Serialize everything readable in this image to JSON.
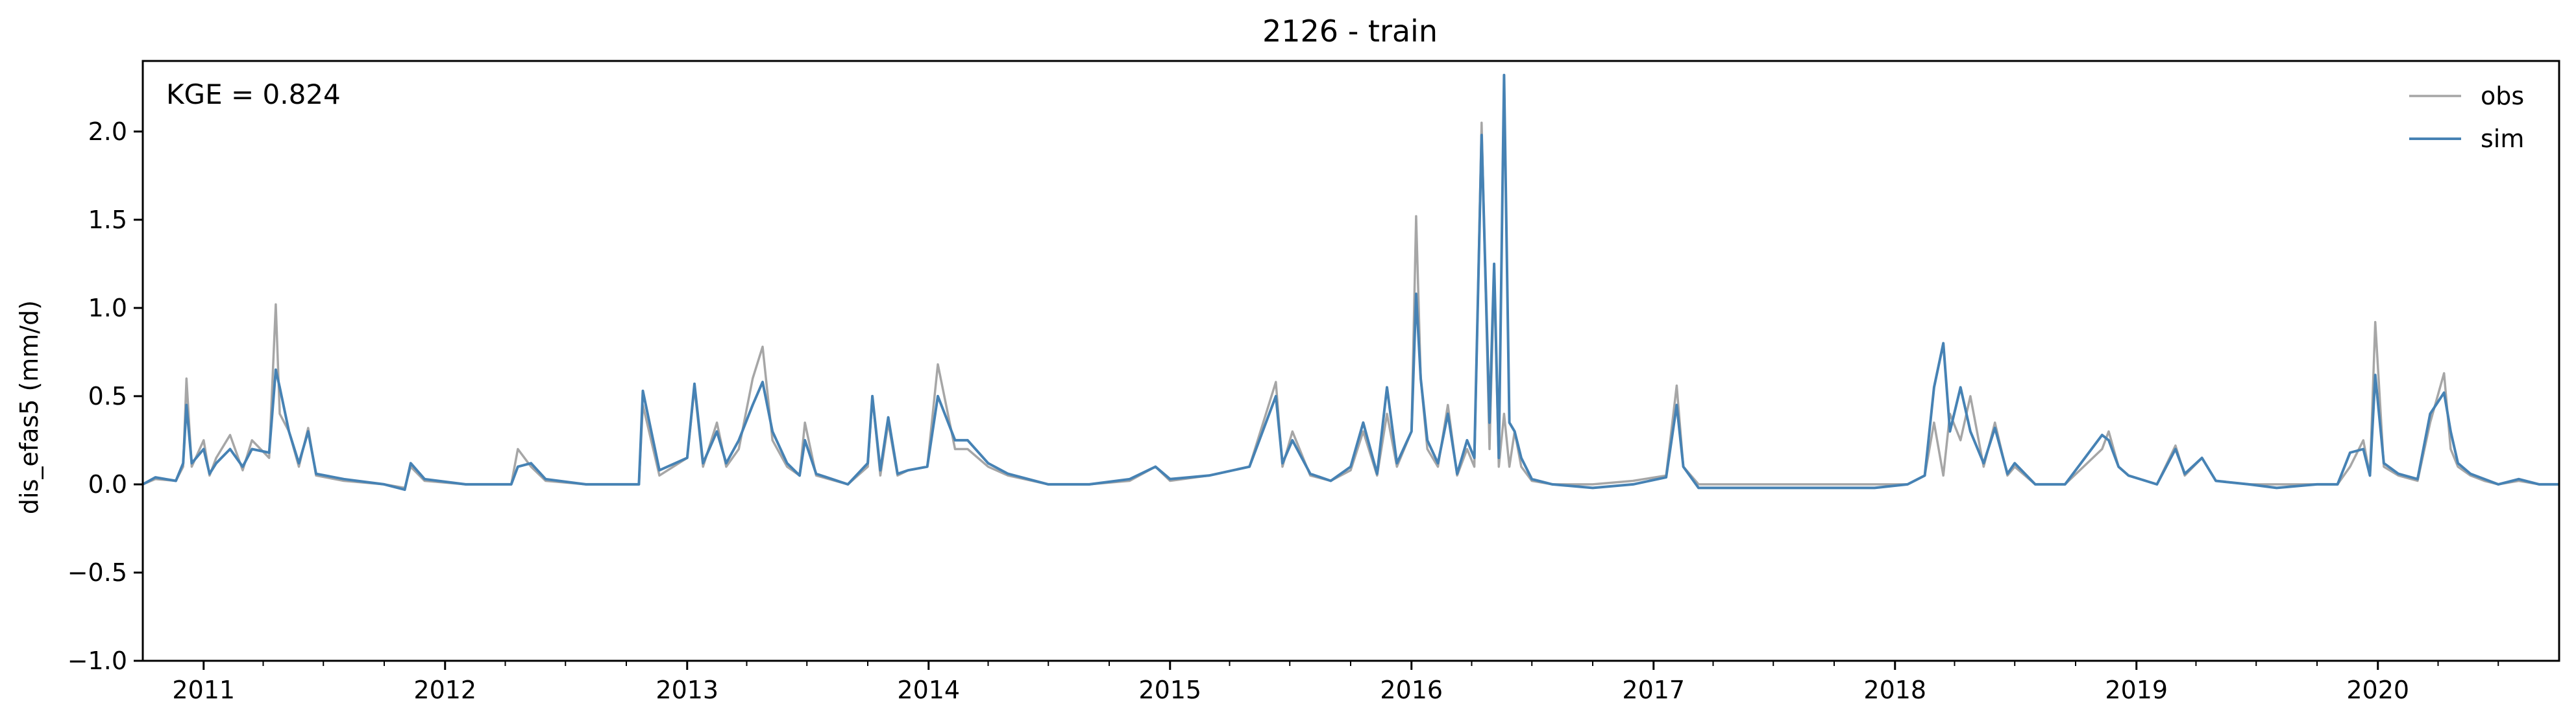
{
  "chart_data": {
    "type": "line",
    "title": "2126 - train",
    "ylabel": "dis_efas5 (mm/d)",
    "xlabel": "",
    "annotation": "KGE = 0.824",
    "xlim": [
      "2010-10-01",
      "2020-10-01"
    ],
    "ylim": [
      -1.0,
      2.4
    ],
    "y_ticks": [
      -1.0,
      -0.5,
      0.0,
      0.5,
      1.0,
      1.5,
      2.0
    ],
    "y_tick_labels": [
      "−1.0",
      "−0.5",
      "0.0",
      "0.5",
      "1.0",
      "1.5",
      "2.0"
    ],
    "x_ticks": [
      "2011-01-01",
      "2012-01-01",
      "2013-01-01",
      "2014-01-01",
      "2015-01-01",
      "2016-01-01",
      "2017-01-01",
      "2018-01-01",
      "2019-01-01",
      "2020-01-01"
    ],
    "x_tick_labels": [
      "2011",
      "2012",
      "2013",
      "2014",
      "2015",
      "2016",
      "2017",
      "2018",
      "2019",
      "2020"
    ],
    "grid": false,
    "legend": {
      "placement": "top-right"
    },
    "series": [
      {
        "name": "obs",
        "color": "#a6a6a6",
        "x": [
          "2010-10-01",
          "2010-10-20",
          "2010-11-20",
          "2010-12-01",
          "2010-12-06",
          "2010-12-14",
          "2011-01-01",
          "2011-01-10",
          "2011-01-20",
          "2011-02-10",
          "2011-03-01",
          "2011-03-15",
          "2011-04-10",
          "2011-04-20",
          "2011-04-26",
          "2011-05-10",
          "2011-05-25",
          "2011-06-08",
          "2011-06-20",
          "2011-08-01",
          "2011-10-01",
          "2011-11-01",
          "2011-11-10",
          "2011-12-01",
          "2012-02-01",
          "2012-04-10",
          "2012-04-20",
          "2012-05-10",
          "2012-06-01",
          "2012-08-01",
          "2012-10-20",
          "2012-10-26",
          "2012-11-20",
          "2013-01-01",
          "2013-01-12",
          "2013-01-25",
          "2013-02-15",
          "2013-03-01",
          "2013-03-20",
          "2013-04-10",
          "2013-04-25",
          "2013-05-10",
          "2013-06-01",
          "2013-06-20",
          "2013-06-28",
          "2013-07-15",
          "2013-09-01",
          "2013-10-01",
          "2013-10-08",
          "2013-10-20",
          "2013-11-01",
          "2013-11-15",
          "2013-12-01",
          "2013-12-30",
          "2014-01-15",
          "2014-02-10",
          "2014-03-01",
          "2014-04-01",
          "2014-05-01",
          "2014-07-01",
          "2014-09-01",
          "2014-11-01",
          "2014-12-10",
          "2015-01-01",
          "2015-03-01",
          "2015-05-01",
          "2015-06-10",
          "2015-06-20",
          "2015-07-05",
          "2015-08-01",
          "2015-09-01",
          "2015-10-01",
          "2015-10-20",
          "2015-11-10",
          "2015-11-25",
          "2015-12-10",
          "2016-01-01",
          "2016-01-08",
          "2016-01-15",
          "2016-01-25",
          "2016-02-10",
          "2016-02-25",
          "2016-03-10",
          "2016-03-25",
          "2016-04-05",
          "2016-04-16",
          "2016-04-28",
          "2016-05-05",
          "2016-05-12",
          "2016-05-20",
          "2016-05-28",
          "2016-06-05",
          "2016-06-15",
          "2016-07-01",
          "2016-08-01",
          "2016-10-01",
          "2016-12-01",
          "2017-01-20",
          "2017-02-05",
          "2017-02-15",
          "2017-03-10",
          "2017-05-01",
          "2017-07-01",
          "2017-10-01",
          "2017-12-01",
          "2018-01-20",
          "2018-02-15",
          "2018-03-01",
          "2018-03-15",
          "2018-03-25",
          "2018-04-10",
          "2018-04-25",
          "2018-05-15",
          "2018-06-01",
          "2018-06-20",
          "2018-07-01",
          "2018-08-01",
          "2018-09-15",
          "2018-11-10",
          "2018-11-20",
          "2018-12-05",
          "2018-12-20",
          "2019-01-15",
          "2019-02-01",
          "2019-03-01",
          "2019-03-15",
          "2019-04-10",
          "2019-05-01",
          "2019-06-20",
          "2019-08-01",
          "2019-10-01",
          "2019-11-01",
          "2019-11-20",
          "2019-12-10",
          "2019-12-20",
          "2019-12-28",
          "2020-01-10",
          "2020-02-01",
          "2020-03-01",
          "2020-03-20",
          "2020-04-10",
          "2020-04-20",
          "2020-05-01",
          "2020-05-20",
          "2020-06-10",
          "2020-07-01",
          "2020-08-01",
          "2020-09-01",
          "2020-10-01"
        ],
        "y": [
          0.0,
          0.03,
          0.02,
          0.1,
          0.6,
          0.1,
          0.25,
          0.05,
          0.15,
          0.28,
          0.08,
          0.25,
          0.15,
          1.02,
          0.4,
          0.3,
          0.1,
          0.32,
          0.05,
          0.02,
          0.0,
          -0.02,
          0.1,
          0.02,
          0.0,
          0.0,
          0.2,
          0.1,
          0.02,
          0.0,
          0.0,
          0.45,
          0.05,
          0.15,
          0.55,
          0.1,
          0.35,
          0.1,
          0.2,
          0.6,
          0.78,
          0.25,
          0.1,
          0.05,
          0.35,
          0.05,
          0.0,
          0.1,
          0.5,
          0.05,
          0.35,
          0.05,
          0.08,
          0.1,
          0.68,
          0.2,
          0.2,
          0.1,
          0.05,
          0.0,
          0.0,
          0.02,
          0.1,
          0.02,
          0.05,
          0.1,
          0.58,
          0.1,
          0.3,
          0.05,
          0.02,
          0.08,
          0.3,
          0.05,
          0.4,
          0.1,
          0.3,
          1.52,
          0.6,
          0.2,
          0.1,
          0.45,
          0.05,
          0.2,
          0.1,
          2.05,
          0.2,
          1.2,
          0.1,
          0.4,
          0.1,
          0.3,
          0.1,
          0.02,
          0.0,
          0.0,
          0.02,
          0.05,
          0.56,
          0.1,
          0.0,
          0.0,
          0.0,
          0.0,
          0.0,
          0.0,
          0.05,
          0.35,
          0.05,
          0.4,
          0.25,
          0.5,
          0.1,
          0.35,
          0.05,
          0.1,
          0.0,
          0.0,
          0.2,
          0.3,
          0.1,
          0.05,
          0.02,
          0.0,
          0.22,
          0.05,
          0.15,
          0.02,
          0.0,
          0.0,
          0.0,
          0.0,
          0.1,
          0.25,
          0.05,
          0.92,
          0.1,
          0.05,
          0.02,
          0.35,
          0.63,
          0.2,
          0.1,
          0.05,
          0.02,
          0.0,
          0.02,
          0.0,
          0.0
        ]
      },
      {
        "name": "sim",
        "color": "#4682b4",
        "x": [
          "2010-10-01",
          "2010-10-20",
          "2010-11-20",
          "2010-12-01",
          "2010-12-06",
          "2010-12-14",
          "2011-01-01",
          "2011-01-10",
          "2011-01-20",
          "2011-02-10",
          "2011-03-01",
          "2011-03-15",
          "2011-04-10",
          "2011-04-20",
          "2011-04-26",
          "2011-05-10",
          "2011-05-25",
          "2011-06-08",
          "2011-06-20",
          "2011-08-01",
          "2011-10-01",
          "2011-11-01",
          "2011-11-10",
          "2011-12-01",
          "2012-02-01",
          "2012-04-10",
          "2012-04-20",
          "2012-05-10",
          "2012-06-01",
          "2012-08-01",
          "2012-10-20",
          "2012-10-26",
          "2012-11-20",
          "2013-01-01",
          "2013-01-12",
          "2013-01-25",
          "2013-02-15",
          "2013-03-01",
          "2013-03-20",
          "2013-04-10",
          "2013-04-25",
          "2013-05-10",
          "2013-06-01",
          "2013-06-20",
          "2013-06-28",
          "2013-07-15",
          "2013-09-01",
          "2013-10-01",
          "2013-10-08",
          "2013-10-20",
          "2013-11-01",
          "2013-11-15",
          "2013-12-01",
          "2013-12-30",
          "2014-01-15",
          "2014-02-10",
          "2014-03-01",
          "2014-04-01",
          "2014-05-01",
          "2014-07-01",
          "2014-09-01",
          "2014-11-01",
          "2014-12-10",
          "2015-01-01",
          "2015-03-01",
          "2015-05-01",
          "2015-06-10",
          "2015-06-20",
          "2015-07-05",
          "2015-08-01",
          "2015-09-01",
          "2015-10-01",
          "2015-10-20",
          "2015-11-10",
          "2015-11-25",
          "2015-12-10",
          "2016-01-01",
          "2016-01-08",
          "2016-01-15",
          "2016-01-25",
          "2016-02-10",
          "2016-02-25",
          "2016-03-10",
          "2016-03-25",
          "2016-04-05",
          "2016-04-16",
          "2016-04-28",
          "2016-05-05",
          "2016-05-12",
          "2016-05-20",
          "2016-05-28",
          "2016-06-05",
          "2016-06-15",
          "2016-07-01",
          "2016-08-01",
          "2016-10-01",
          "2016-12-01",
          "2017-01-20",
          "2017-02-05",
          "2017-02-15",
          "2017-03-10",
          "2017-05-01",
          "2017-07-01",
          "2017-10-01",
          "2017-12-01",
          "2018-01-20",
          "2018-02-15",
          "2018-03-01",
          "2018-03-15",
          "2018-03-25",
          "2018-04-10",
          "2018-04-25",
          "2018-05-15",
          "2018-06-01",
          "2018-06-20",
          "2018-07-01",
          "2018-08-01",
          "2018-09-15",
          "2018-11-10",
          "2018-11-20",
          "2018-12-05",
          "2018-12-20",
          "2019-01-15",
          "2019-02-01",
          "2019-03-01",
          "2019-03-15",
          "2019-04-10",
          "2019-05-01",
          "2019-06-20",
          "2019-08-01",
          "2019-10-01",
          "2019-11-01",
          "2019-11-20",
          "2019-12-10",
          "2019-12-20",
          "2019-12-28",
          "2020-01-10",
          "2020-02-01",
          "2020-03-01",
          "2020-03-20",
          "2020-04-10",
          "2020-04-20",
          "2020-05-01",
          "2020-05-20",
          "2020-06-10",
          "2020-07-01",
          "2020-08-01",
          "2020-09-01",
          "2020-10-01"
        ],
        "y": [
          0.0,
          0.04,
          0.02,
          0.12,
          0.45,
          0.12,
          0.2,
          0.06,
          0.12,
          0.2,
          0.1,
          0.2,
          0.18,
          0.65,
          0.55,
          0.3,
          0.12,
          0.3,
          0.06,
          0.03,
          0.0,
          -0.03,
          0.12,
          0.03,
          0.0,
          0.0,
          0.1,
          0.12,
          0.03,
          0.0,
          0.0,
          0.53,
          0.08,
          0.15,
          0.57,
          0.12,
          0.3,
          0.12,
          0.25,
          0.45,
          0.58,
          0.3,
          0.12,
          0.05,
          0.25,
          0.06,
          0.0,
          0.12,
          0.5,
          0.08,
          0.38,
          0.06,
          0.08,
          0.1,
          0.5,
          0.25,
          0.25,
          0.12,
          0.06,
          0.0,
          0.0,
          0.03,
          0.1,
          0.03,
          0.05,
          0.1,
          0.5,
          0.12,
          0.25,
          0.06,
          0.02,
          0.1,
          0.35,
          0.06,
          0.55,
          0.12,
          0.3,
          1.08,
          0.6,
          0.25,
          0.12,
          0.4,
          0.06,
          0.25,
          0.15,
          1.98,
          0.35,
          1.25,
          0.15,
          2.32,
          0.35,
          0.3,
          0.15,
          0.03,
          0.0,
          -0.02,
          0.0,
          0.04,
          0.45,
          0.1,
          -0.02,
          -0.02,
          -0.02,
          -0.02,
          -0.02,
          0.0,
          0.05,
          0.55,
          0.8,
          0.3,
          0.55,
          0.3,
          0.12,
          0.32,
          0.06,
          0.12,
          0.0,
          0.0,
          0.28,
          0.25,
          0.1,
          0.05,
          0.02,
          0.0,
          0.2,
          0.06,
          0.15,
          0.02,
          0.0,
          -0.02,
          0.0,
          0.0,
          0.18,
          0.2,
          0.05,
          0.62,
          0.12,
          0.06,
          0.03,
          0.4,
          0.52,
          0.3,
          0.12,
          0.06,
          0.03,
          0.0,
          0.03,
          0.0,
          0.0
        ]
      }
    ]
  }
}
